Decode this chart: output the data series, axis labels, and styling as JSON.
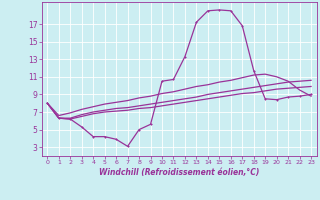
{
  "title": "",
  "xlabel": "Windchill (Refroidissement éolien,°C)",
  "bg_color": "#cceef2",
  "grid_color": "#ffffff",
  "line_color": "#993399",
  "xlim": [
    -0.5,
    23.5
  ],
  "ylim": [
    2.0,
    19.5
  ],
  "xticks": [
    0,
    1,
    2,
    3,
    4,
    5,
    6,
    7,
    8,
    9,
    10,
    11,
    12,
    13,
    14,
    15,
    16,
    17,
    18,
    19,
    20,
    21,
    22,
    23
  ],
  "yticks": [
    3,
    5,
    7,
    9,
    11,
    13,
    15,
    17
  ],
  "line1_x": [
    0,
    1,
    2,
    3,
    4,
    5,
    6,
    7,
    8,
    9,
    10,
    11,
    12,
    13,
    14,
    15,
    16,
    17,
    18,
    19,
    20,
    21,
    22,
    23
  ],
  "line1_y": [
    8.0,
    6.3,
    6.2,
    5.3,
    4.2,
    4.2,
    3.9,
    3.1,
    5.0,
    5.6,
    10.5,
    10.7,
    13.3,
    17.2,
    18.5,
    18.6,
    18.5,
    16.8,
    11.7,
    8.5,
    8.4,
    8.7,
    8.8,
    9.0
  ],
  "line2_x": [
    0,
    1,
    2,
    3,
    4,
    5,
    6,
    7,
    8,
    9,
    10,
    11,
    12,
    13,
    14,
    15,
    16,
    17,
    18,
    19,
    20,
    21,
    22,
    23
  ],
  "line2_y": [
    8.0,
    6.3,
    6.2,
    6.5,
    6.8,
    7.0,
    7.1,
    7.2,
    7.4,
    7.5,
    7.7,
    7.9,
    8.1,
    8.3,
    8.5,
    8.7,
    8.9,
    9.1,
    9.2,
    9.4,
    9.6,
    9.7,
    9.8,
    9.9
  ],
  "line3_x": [
    0,
    1,
    2,
    3,
    4,
    5,
    6,
    7,
    8,
    9,
    10,
    11,
    12,
    13,
    14,
    15,
    16,
    17,
    18,
    19,
    20,
    21,
    22,
    23
  ],
  "line3_y": [
    8.0,
    6.3,
    6.3,
    6.7,
    7.0,
    7.2,
    7.4,
    7.5,
    7.7,
    7.9,
    8.1,
    8.3,
    8.5,
    8.7,
    9.0,
    9.2,
    9.4,
    9.6,
    9.8,
    10.0,
    10.2,
    10.4,
    10.5,
    10.6
  ],
  "line4_x": [
    0,
    1,
    2,
    3,
    4,
    5,
    6,
    7,
    8,
    9,
    10,
    11,
    12,
    13,
    14,
    15,
    16,
    17,
    18,
    19,
    20,
    21,
    22,
    23
  ],
  "line4_y": [
    8.0,
    6.6,
    6.9,
    7.3,
    7.6,
    7.9,
    8.1,
    8.3,
    8.6,
    8.8,
    9.1,
    9.3,
    9.6,
    9.9,
    10.1,
    10.4,
    10.6,
    10.9,
    11.2,
    11.3,
    11.0,
    10.5,
    9.5,
    8.8
  ]
}
